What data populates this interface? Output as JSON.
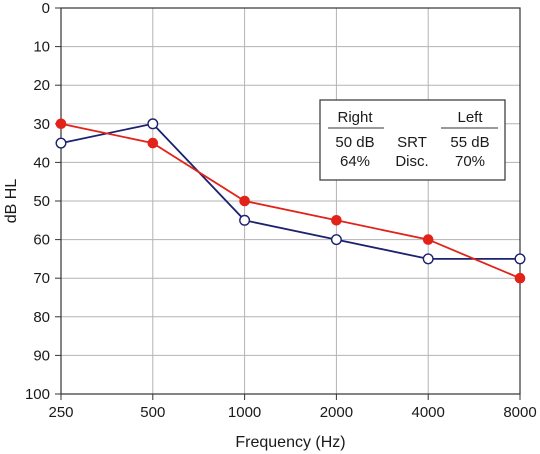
{
  "chart_data": {
    "type": "line",
    "xlabel": "Frequency (Hz)",
    "ylabel": "dB HL",
    "categories": [
      "250",
      "500",
      "1000",
      "2000",
      "4000",
      "8000"
    ],
    "ylim": [
      0,
      100
    ],
    "y_inverted": true,
    "yticks": [
      "0",
      "10",
      "20",
      "30",
      "40",
      "50",
      "60",
      "70",
      "80",
      "90",
      "100"
    ],
    "grid": true,
    "series": [
      {
        "key": "right",
        "values": [
          35,
          30,
          55,
          60,
          65,
          65
        ],
        "color": "#1c2170",
        "marker": "open-circle"
      },
      {
        "key": "left",
        "values": [
          30,
          35,
          50,
          55,
          60,
          70
        ],
        "color": "#e2231a",
        "marker": "filled-circle"
      }
    ],
    "legend_table": {
      "position": "top-right",
      "right_header": "Right",
      "left_header": "Left",
      "right_srt": "50 dB",
      "middle_srt": "SRT",
      "left_srt": "55 dB",
      "right_disc": "64%",
      "middle_disc": "Disc.",
      "left_disc": "70%"
    }
  }
}
